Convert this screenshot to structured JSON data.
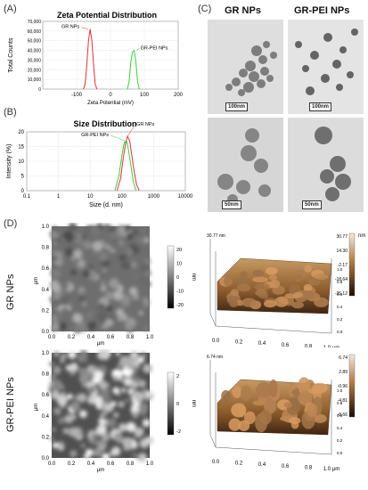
{
  "panel_labels": {
    "a": "(A)",
    "b": "(B)",
    "c": "(C)",
    "d": "(D)"
  },
  "chart_data": [
    {
      "type": "line",
      "title": "Zeta Potential Distribution",
      "xlabel": "Zeta Potential (mV)",
      "ylabel": "Total Counts",
      "xlim": [
        -200,
        200
      ],
      "ylim": [
        0,
        70000
      ],
      "x_ticks": [
        -100,
        0,
        100,
        200
      ],
      "y_ticks": [
        "0",
        "10,000",
        "20,000",
        "30,000",
        "40,000",
        "50,000",
        "60,000",
        "70,000"
      ],
      "grid": true,
      "series": [
        {
          "name": "GR NPs",
          "color": "#e0333a",
          "x": [
            -80,
            -75,
            -70,
            -65,
            -60,
            -55,
            -50,
            -45,
            -40
          ],
          "y": [
            0,
            5000,
            25000,
            50000,
            62000,
            50000,
            25000,
            5000,
            0
          ]
        },
        {
          "name": "GR-PEI NPs",
          "color": "#3ccf3c",
          "x": [
            50,
            55,
            60,
            65,
            70,
            75,
            80,
            85
          ],
          "y": [
            0,
            8000,
            28000,
            38000,
            40000,
            28000,
            8000,
            0
          ]
        }
      ]
    },
    {
      "type": "line",
      "title": "Size Distribution",
      "xlabel": "Size (d. nm)",
      "ylabel": "Intensity (%)",
      "xscale": "log",
      "xlim": [
        0.1,
        10000
      ],
      "ylim": [
        0,
        20
      ],
      "x_ticks": [
        "0.1",
        "1",
        "10",
        "100",
        "1000",
        "10000"
      ],
      "y_ticks": [
        "0",
        "5",
        "10",
        "15",
        "20"
      ],
      "grid": true,
      "series": [
        {
          "name": "GR NPs",
          "color": "#e0333a",
          "x": [
            70,
            90,
            110,
            130,
            150,
            175,
            200,
            240,
            290,
            350
          ],
          "y": [
            0,
            4,
            11,
            16,
            18.5,
            17,
            13,
            7,
            2,
            0
          ]
        },
        {
          "name": "GR-PEI NPs",
          "color": "#3ccf3c",
          "x": [
            60,
            80,
            100,
            120,
            140,
            160,
            190,
            230,
            280
          ],
          "y": [
            0,
            5,
            12,
            16.5,
            17,
            14,
            9,
            3,
            0
          ]
        }
      ]
    },
    {
      "type": "heatmap",
      "xlabel": "µm",
      "ylabel": "µm",
      "xlim": [
        0,
        1.0
      ],
      "ylim": [
        0,
        1.0
      ],
      "x_ticks": [
        "0.0",
        "0.2",
        "0.4",
        "0.6",
        "0.8",
        "1.0"
      ],
      "y_ticks": [
        "0.0",
        "0.2",
        "0.4",
        "0.6",
        "0.8",
        "1.0"
      ],
      "colorbar_unit": "nm",
      "colorbar_ticks": [
        "20",
        "10",
        "0",
        "-10",
        "-20"
      ]
    },
    {
      "type": "heatmap",
      "xlabel": "µm",
      "ylabel": "µm",
      "xlim": [
        0,
        1.0
      ],
      "ylim": [
        0,
        1.0
      ],
      "x_ticks": [
        "0.0",
        "0.2",
        "0.4",
        "0.6",
        "0.8",
        "1.0"
      ],
      "y_ticks": [
        "0.0",
        "0.2",
        "0.4",
        "0.6",
        "0.8",
        "1.0"
      ],
      "colorbar_unit": "nm",
      "colorbar_ticks": [
        "2",
        "0",
        "-2"
      ]
    }
  ],
  "tem": {
    "headers": [
      "GR NPs",
      "GR-PEI NPs"
    ],
    "scale_bars": [
      "100nm",
      "100nm",
      "50nm",
      "50nm"
    ]
  },
  "afm": {
    "row_labels": [
      "GR NPs",
      "GR-PEI NPs"
    ],
    "surface_top": {
      "zmax": "30.77 nm",
      "unit": "nm",
      "colorbar_ticks": [
        "30.77",
        "14.30",
        "-2.17",
        "-18.64",
        "-35.12"
      ],
      "x_ticks": [
        "0.0",
        "0.2",
        "0.4",
        "0.6",
        "0.8",
        "1.0 µm"
      ]
    },
    "surface_bottom": {
      "zmax": "6.74 nm",
      "colorbar_ticks": [
        "6.74",
        "2.89",
        "-0.96",
        "-4.81",
        "-8.66"
      ],
      "x_ticks": [
        "0.0",
        "0.2",
        "0.4",
        "0.6",
        "0.8",
        "1.0 µm"
      ]
    },
    "axis_ticks_3d": [
      "0.0",
      "0.2",
      "0.4",
      "0.6",
      "0.8",
      "1.0"
    ]
  },
  "colors": {
    "red": "#e0333a",
    "green": "#3ccf3c",
    "afm_brown": "#9a6a3a"
  }
}
